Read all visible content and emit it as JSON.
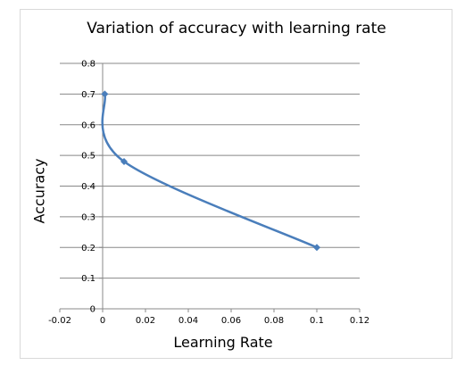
{
  "chart_data": {
    "type": "line",
    "title": "Variation of accuracy with learning rate",
    "xlabel": "Learning Rate",
    "ylabel": "Accuracy",
    "xlim": [
      -0.02,
      0.12
    ],
    "ylim": [
      0,
      0.8
    ],
    "x_ticks": [
      "-0.02",
      "0",
      "0.02",
      "0.04",
      "0.06",
      "0.08",
      "0.1",
      "0.12"
    ],
    "y_ticks": [
      "0",
      "0.1",
      "0.2",
      "0.3",
      "0.4",
      "0.5",
      "0.6",
      "0.7",
      "0.8"
    ],
    "grid": "horizontal",
    "legend": "none",
    "series": [
      {
        "x": [
          0.001,
          0.01,
          0.1
        ],
        "y": [
          0.7,
          0.48,
          0.2
        ]
      }
    ],
    "colors": {
      "series": "#4a7ebb",
      "grid": "#888888",
      "axis": "#888888"
    }
  }
}
